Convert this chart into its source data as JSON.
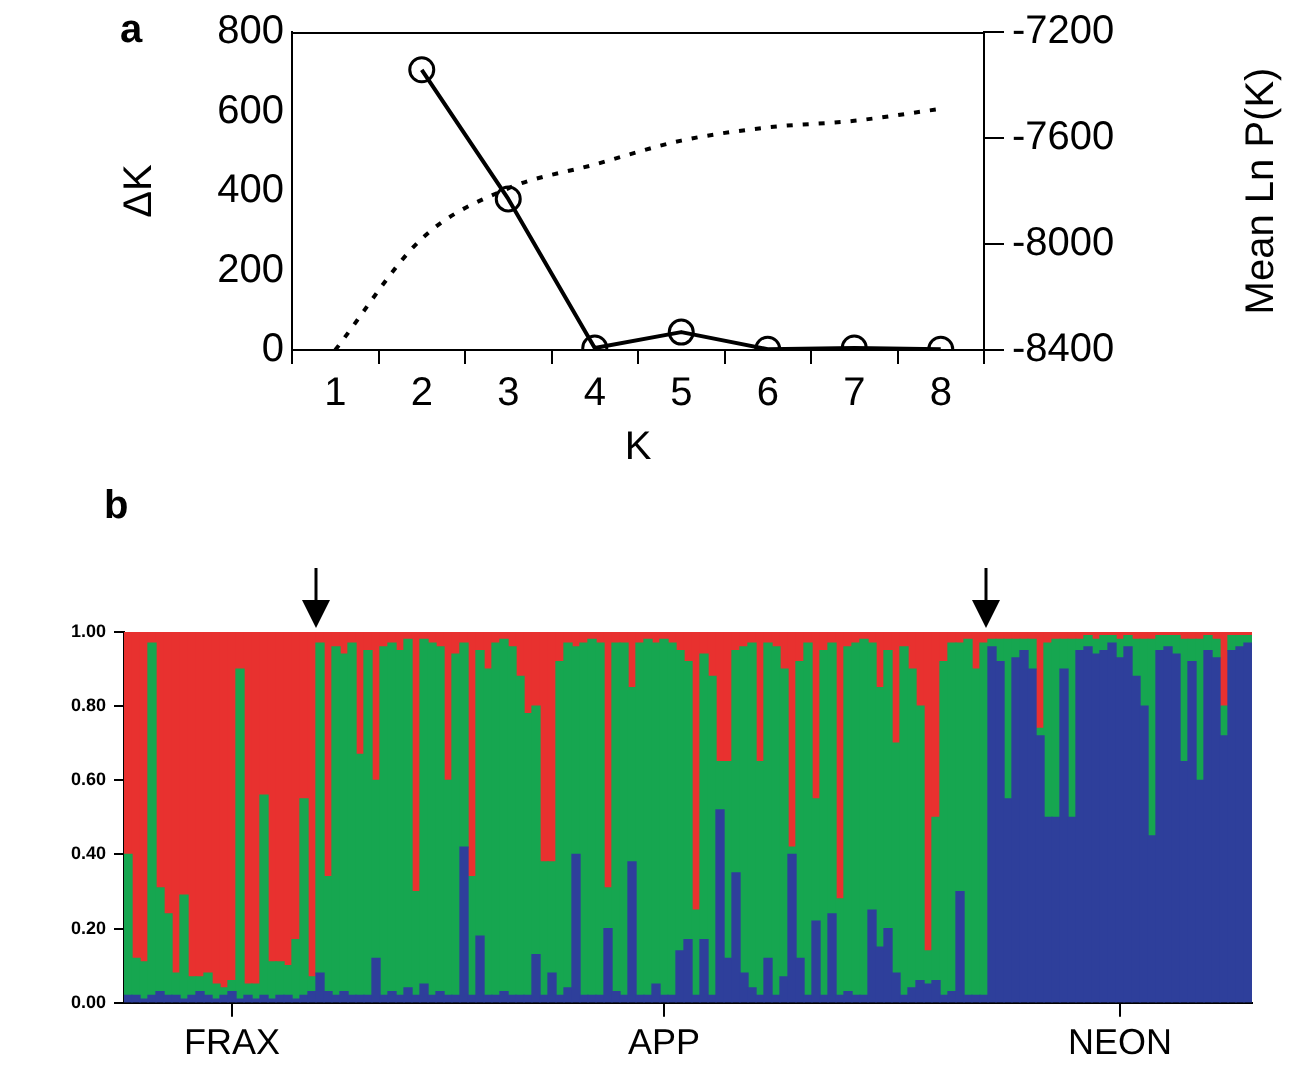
{
  "chart_data": [
    {
      "type": "line",
      "title": "a",
      "xlabel": "K",
      "ylabel": "ΔK",
      "y2label": "Mean Ln P(K)",
      "categories": [
        "1",
        "2",
        "3",
        "4",
        "5",
        "6",
        "7",
        "8"
      ],
      "ylim": [
        0,
        800
      ],
      "yticks": [
        0,
        200,
        400,
        600,
        800
      ],
      "y2lim": [
        -8400,
        -7200
      ],
      "y2ticks": [
        -8400,
        -8000,
        -7600,
        -7200
      ],
      "series": [
        {
          "color": "#000000",
          "values": [
            null,
            705,
            380,
            5,
            45,
            2,
            5,
            2
          ],
          "marker": "circle",
          "line_style": "solid"
        },
        {
          "color": "#000000",
          "values": [
            -8400,
            -7980,
            -7790,
            -7700,
            -7610,
            -7560,
            -7535,
            -7490
          ],
          "axis": "y2",
          "marker": "none",
          "line_style": "dotted"
        }
      ]
    },
    {
      "type": "bar",
      "title": "b",
      "stacked": true,
      "categories": [
        null,
        null,
        null,
        null,
        null,
        null,
        null,
        null,
        null,
        null,
        null,
        null,
        null,
        "FRAX",
        null,
        null,
        null,
        null,
        null,
        null,
        null,
        null,
        null,
        null,
        null,
        null,
        null,
        null,
        null,
        null,
        null,
        null,
        null,
        null,
        null,
        null,
        null,
        null,
        null,
        null,
        null,
        null,
        null,
        null,
        null,
        null,
        null,
        null,
        null,
        null,
        null,
        null,
        null,
        null,
        null,
        null,
        null,
        null,
        null,
        null,
        null,
        null,
        null,
        null,
        null,
        null,
        null,
        "APP",
        null,
        null,
        null,
        null,
        null,
        null,
        null,
        null,
        null,
        null,
        null,
        null,
        null,
        null,
        null,
        null,
        null,
        null,
        null,
        null,
        null,
        null,
        null,
        null,
        null,
        null,
        null,
        null,
        null,
        null,
        null,
        null,
        null,
        null,
        null,
        null,
        null,
        null,
        null,
        null,
        null,
        null,
        null,
        null,
        null,
        null,
        null,
        null,
        null,
        null,
        null,
        null,
        null,
        null,
        null,
        null,
        "NEON",
        null,
        null,
        null,
        null,
        null,
        null,
        null,
        null,
        null,
        null,
        null,
        null,
        null,
        null,
        null,
        null
      ],
      "ylim": [
        0,
        1
      ],
      "yticks": [
        {
          "value": 0,
          "label": "0.00"
        },
        {
          "value": 0.2,
          "label": "0.20"
        },
        {
          "value": 0.4,
          "label": "0.40"
        },
        {
          "value": 0.6,
          "label": "0.60"
        },
        {
          "value": 0.8,
          "label": "0.80"
        },
        {
          "value": 1,
          "label": "1.00"
        }
      ],
      "series": [
        {
          "color": "#2e3f9b",
          "values": [
            0.02,
            0.02,
            0.01,
            0.02,
            0.03,
            0.02,
            0.02,
            0.01,
            0.02,
            0.03,
            0.02,
            0.01,
            0.02,
            0.03,
            0.01,
            0.02,
            0.01,
            0.02,
            0.01,
            0.02,
            0.02,
            0.01,
            0.02,
            0.03,
            0.08,
            0.03,
            0.02,
            0.03,
            0.02,
            0.02,
            0.02,
            0.12,
            0.02,
            0.03,
            0.02,
            0.04,
            0.02,
            0.05,
            0.02,
            0.03,
            0.02,
            0.02,
            0.42,
            0.02,
            0.18,
            0.02,
            0.02,
            0.03,
            0.02,
            0.02,
            0.02,
            0.13,
            0.02,
            0.08,
            0.02,
            0.04,
            0.4,
            0.02,
            0.02,
            0.02,
            0.2,
            0.03,
            0.02,
            0.38,
            0.02,
            0.02,
            0.05,
            0.02,
            0.02,
            0.14,
            0.17,
            0.02,
            0.17,
            0.02,
            0.52,
            0.12,
            0.35,
            0.08,
            0.04,
            0.02,
            0.12,
            0.02,
            0.07,
            0.4,
            0.12,
            0.02,
            0.22,
            0.02,
            0.24,
            0.02,
            0.03,
            0.02,
            0.02,
            0.25,
            0.15,
            0.2,
            0.08,
            0.02,
            0.04,
            0.06,
            0.05,
            0.06,
            0.02,
            0.03,
            0.3,
            0.02,
            0.02,
            0.02,
            0.96,
            0.92,
            0.55,
            0.93,
            0.95,
            0.9,
            0.72,
            0.5,
            0.5,
            0.9,
            0.5,
            0.95,
            0.96,
            0.94,
            0.95,
            0.97,
            0.93,
            0.96,
            0.88,
            0.8,
            0.45,
            0.95,
            0.96,
            0.94,
            0.65,
            0.92,
            0.6,
            0.95,
            0.93,
            0.72,
            0.95,
            0.96,
            0.97
          ]
        },
        {
          "color": "#16a650",
          "values": [
            0.38,
            0.1,
            0.1,
            0.95,
            0.28,
            0.22,
            0.06,
            0.28,
            0.05,
            0.04,
            0.06,
            0.04,
            0.02,
            0.03,
            0.89,
            0.03,
            0.04,
            0.54,
            0.1,
            0.09,
            0.08,
            0.16,
            0.53,
            0.04,
            0.89,
            0.31,
            0.94,
            0.91,
            0.95,
            0.65,
            0.93,
            0.48,
            0.94,
            0.94,
            0.93,
            0.94,
            0.28,
            0.93,
            0.95,
            0.93,
            0.58,
            0.92,
            0.55,
            0.32,
            0.77,
            0.88,
            0.95,
            0.95,
            0.94,
            0.86,
            0.76,
            0.67,
            0.36,
            0.3,
            0.9,
            0.93,
            0.56,
            0.95,
            0.96,
            0.95,
            0.11,
            0.94,
            0.95,
            0.47,
            0.95,
            0.96,
            0.92,
            0.96,
            0.95,
            0.81,
            0.75,
            0.23,
            0.77,
            0.86,
            0.13,
            0.53,
            0.6,
            0.88,
            0.93,
            0.63,
            0.85,
            0.94,
            0.83,
            0.02,
            0.8,
            0.95,
            0.33,
            0.93,
            0.73,
            0.26,
            0.93,
            0.95,
            0.96,
            0.72,
            0.7,
            0.75,
            0.62,
            0.94,
            0.86,
            0.74,
            0.09,
            0.44,
            0.9,
            0.94,
            0.67,
            0.96,
            0.88,
            0.95,
            0.02,
            0.06,
            0.43,
            0.05,
            0.03,
            0.08,
            0.02,
            0.47,
            0.48,
            0.08,
            0.48,
            0.03,
            0.03,
            0.04,
            0.04,
            0.02,
            0.05,
            0.03,
            0.1,
            0.18,
            0.53,
            0.04,
            0.03,
            0.05,
            0.33,
            0.06,
            0.38,
            0.04,
            0.05,
            0.08,
            0.04,
            0.03,
            0.02
          ]
        },
        {
          "color": "#e8312f",
          "values": [
            0.6,
            0.88,
            0.89,
            0.03,
            0.69,
            0.76,
            0.92,
            0.71,
            0.93,
            0.93,
            0.92,
            0.95,
            0.96,
            0.94,
            0.1,
            0.95,
            0.95,
            0.44,
            0.89,
            0.89,
            0.9,
            0.83,
            0.45,
            0.93,
            0.03,
            0.66,
            0.04,
            0.06,
            0.03,
            0.33,
            0.05,
            0.4,
            0.04,
            0.03,
            0.05,
            0.02,
            0.7,
            0.02,
            0.03,
            0.04,
            0.4,
            0.06,
            0.03,
            0.66,
            0.05,
            0.1,
            0.03,
            0.02,
            0.04,
            0.12,
            0.22,
            0.2,
            0.62,
            0.62,
            0.08,
            0.03,
            0.04,
            0.03,
            0.02,
            0.03,
            0.69,
            0.03,
            0.03,
            0.15,
            0.03,
            0.02,
            0.03,
            0.02,
            0.03,
            0.05,
            0.08,
            0.75,
            0.06,
            0.12,
            0.35,
            0.35,
            0.05,
            0.04,
            0.03,
            0.35,
            0.03,
            0.04,
            0.1,
            0.58,
            0.08,
            0.03,
            0.45,
            0.05,
            0.03,
            0.72,
            0.04,
            0.03,
            0.02,
            0.03,
            0.15,
            0.05,
            0.3,
            0.04,
            0.1,
            0.2,
            0.86,
            0.5,
            0.08,
            0.03,
            0.03,
            0.02,
            0.1,
            0.03,
            0.02,
            0.02,
            0.02,
            0.02,
            0.02,
            0.02,
            0.26,
            0.03,
            0.02,
            0.02,
            0.02,
            0.02,
            0.01,
            0.02,
            0.01,
            0.01,
            0.02,
            0.01,
            0.02,
            0.02,
            0.02,
            0.01,
            0.01,
            0.01,
            0.02,
            0.02,
            0.02,
            0.01,
            0.02,
            0.2,
            0.01,
            0.01,
            0.01
          ]
        }
      ]
    }
  ]
}
